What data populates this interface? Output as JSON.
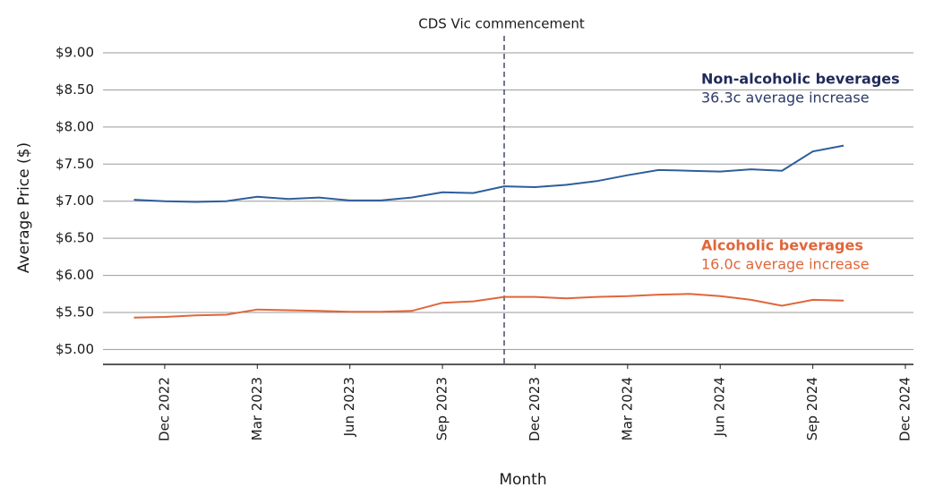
{
  "chart_data": {
    "type": "line",
    "annotation": {
      "text": "CDS Vic commencement",
      "x": "2023-11"
    },
    "xlabel": "Month",
    "ylabel": "Average Price ($)",
    "x": [
      "2022-11",
      "2022-12",
      "2023-01",
      "2023-02",
      "2023-03",
      "2023-04",
      "2023-05",
      "2023-06",
      "2023-07",
      "2023-08",
      "2023-09",
      "2023-10",
      "2023-11",
      "2023-12",
      "2024-01",
      "2024-02",
      "2024-03",
      "2024-04",
      "2024-05",
      "2024-06",
      "2024-07",
      "2024-08",
      "2024-09",
      "2024-10"
    ],
    "series": [
      {
        "name": "Non-alcoholic beverages",
        "note": "36.3c average increase",
        "color": "#2d5e9a",
        "values": [
          7.02,
          7.0,
          6.99,
          7.0,
          7.06,
          7.03,
          7.05,
          7.01,
          7.01,
          7.05,
          7.12,
          7.11,
          7.2,
          7.19,
          7.22,
          7.27,
          7.35,
          7.42,
          7.41,
          7.4,
          7.43,
          7.41,
          7.67,
          7.75
        ]
      },
      {
        "name": "Alcoholic beverages",
        "note": "16.0c average increase",
        "color": "#e0663a",
        "values": [
          5.43,
          5.44,
          5.46,
          5.47,
          5.54,
          5.53,
          5.52,
          5.51,
          5.51,
          5.52,
          5.63,
          5.65,
          5.71,
          5.71,
          5.69,
          5.71,
          5.72,
          5.74,
          5.75,
          5.72,
          5.67,
          5.59,
          5.67,
          5.66
        ]
      }
    ],
    "xlim": [
      "2022-10",
      "2024-12"
    ],
    "xticks": [
      {
        "value": "2022-12",
        "label": "Dec 2022"
      },
      {
        "value": "2023-03",
        "label": "Mar 2023"
      },
      {
        "value": "2023-06",
        "label": "Jun 2023"
      },
      {
        "value": "2023-09",
        "label": "Sep 2023"
      },
      {
        "value": "2023-12",
        "label": "Dec 2023"
      },
      {
        "value": "2024-03",
        "label": "Mar 2024"
      },
      {
        "value": "2024-06",
        "label": "Jun 2024"
      },
      {
        "value": "2024-09",
        "label": "Sep 2024"
      },
      {
        "value": "2024-12",
        "label": "Dec 2024"
      }
    ],
    "ylim": [
      4.8,
      9
    ],
    "yticks": [
      {
        "value": 5,
        "label": "$5.00"
      },
      {
        "value": 5.5,
        "label": "$5.50"
      },
      {
        "value": 6,
        "label": "$6.00"
      },
      {
        "value": 6.5,
        "label": "$6.50"
      },
      {
        "value": 7,
        "label": "$7.00"
      },
      {
        "value": 7.5,
        "label": "$7.50"
      },
      {
        "value": 8,
        "label": "$8.00"
      },
      {
        "value": 8.5,
        "label": "$8.50"
      },
      {
        "value": 9,
        "label": "$9.00"
      }
    ],
    "grid": true
  }
}
